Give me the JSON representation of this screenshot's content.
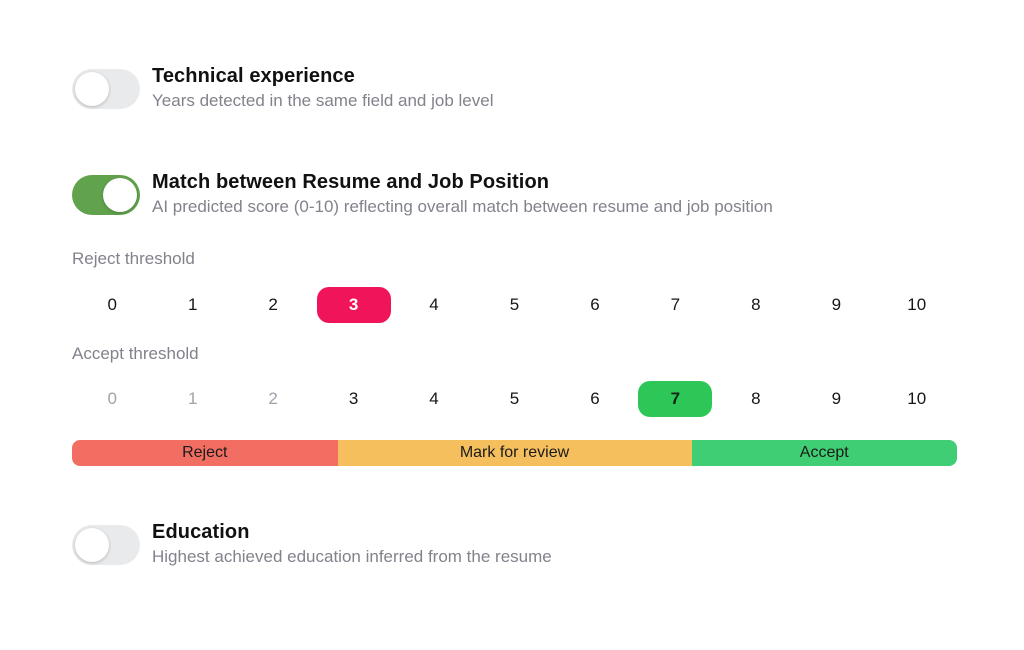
{
  "colors": {
    "toggle_on": "#61A24C",
    "toggle_off": "#E9EAEC",
    "pill_reject": "#F0145A",
    "pill_accept": "#2DC758",
    "bar_reject": "#F26E62",
    "bar_review": "#F6BF5E",
    "bar_accept": "#3FCE73",
    "title_text": "#111111",
    "muted_text": "#82828C",
    "scale_muted": "#9FA3AA",
    "bar_text": "#1B1B1B"
  },
  "settings": {
    "technical_experience": {
      "title": "Technical experience",
      "description": "Years detected in the same field and job level",
      "enabled": false
    },
    "match": {
      "title": "Match between Resume and Job Position",
      "description": "AI predicted score (0-10) reflecting overall match between resume and job position",
      "enabled": true,
      "scale": [
        0,
        1,
        2,
        3,
        4,
        5,
        6,
        7,
        8,
        9,
        10
      ],
      "reject": {
        "label": "Reject threshold",
        "value": 3
      },
      "accept": {
        "label": "Accept threshold",
        "value": 7,
        "muted_below": 3
      },
      "bar": {
        "segments": [
          {
            "label": "Reject",
            "span": 3,
            "kind": "reject"
          },
          {
            "label": "Mark for review",
            "span": 4,
            "kind": "review"
          },
          {
            "label": "Accept",
            "span": 3,
            "kind": "accept"
          }
        ]
      }
    },
    "education": {
      "title": "Education",
      "description": "Highest achieved education inferred from the resume",
      "enabled": false
    }
  }
}
